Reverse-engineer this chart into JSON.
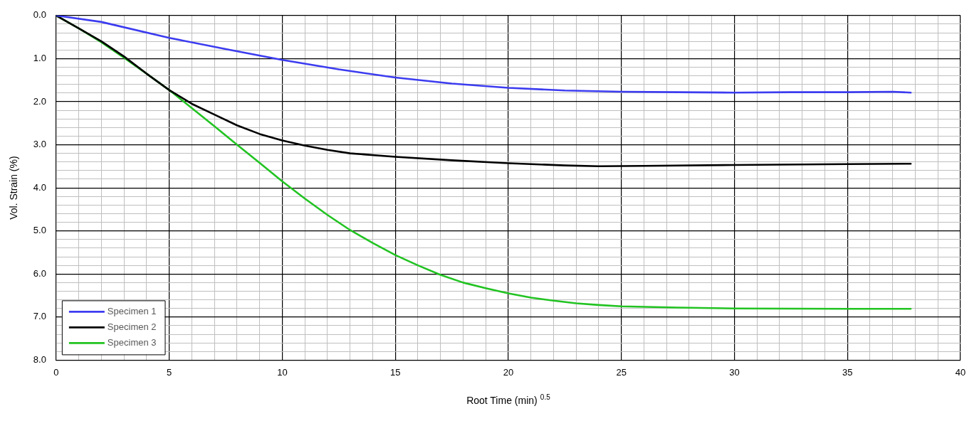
{
  "chart_data": {
    "type": "line",
    "xlabel": "Root Time (min) $^{0.5}$",
    "ylabel": "Vol. Strain (%)",
    "xlim": [
      0,
      40
    ],
    "ylim": [
      8,
      0
    ],
    "xticks": [
      0,
      {
        "value": 1,
        "label": null
      },
      {
        "value": 2,
        "label": null
      },
      {
        "value": 3,
        "label": null
      },
      {
        "value": 4,
        "label": null
      },
      5,
      {
        "value": 6,
        "label": null
      },
      {
        "value": 7,
        "label": null
      },
      {
        "value": 8,
        "label": null
      },
      {
        "value": 9,
        "label": null
      },
      10,
      {
        "value": 11,
        "label": null
      },
      {
        "value": 12,
        "label": null
      },
      {
        "value": 13,
        "label": null
      },
      {
        "value": 14,
        "label": null
      },
      15,
      {
        "value": 16,
        "label": null
      },
      {
        "value": 17,
        "label": null
      },
      {
        "value": 18,
        "label": null
      },
      {
        "value": 19,
        "label": null
      },
      20,
      {
        "value": 21,
        "label": null
      },
      {
        "value": 22,
        "label": null
      },
      {
        "value": 23,
        "label": null
      },
      {
        "value": 24,
        "label": null
      },
      25,
      {
        "value": 26,
        "label": null
      },
      {
        "value": 27,
        "label": null
      },
      {
        "value": 28,
        "label": null
      },
      {
        "value": 29,
        "label": null
      },
      30,
      {
        "value": 31,
        "label": null
      },
      {
        "value": 32,
        "label": null
      },
      {
        "value": 33,
        "label": null
      },
      {
        "value": 34,
        "label": null
      },
      35,
      {
        "value": 36,
        "label": null
      },
      {
        "value": 37,
        "label": null
      },
      {
        "value": 38,
        "label": null
      },
      {
        "value": 39,
        "label": null
      },
      40
    ],
    "yticks": [
      {
        "value": 0,
        "label": "0.0"
      },
      {
        "value": 0.2,
        "label": null
      },
      {
        "value": 0.4,
        "label": null
      },
      {
        "value": 0.6,
        "label": null
      },
      {
        "value": 0.8,
        "label": null
      },
      {
        "value": 1,
        "label": "1.0"
      },
      {
        "value": 1.2,
        "label": null
      },
      {
        "value": 1.4,
        "label": null
      },
      {
        "value": 1.6,
        "label": null
      },
      {
        "value": 1.8,
        "label": null
      },
      {
        "value": 2,
        "label": "2.0"
      },
      {
        "value": 2.2,
        "label": null
      },
      {
        "value": 2.4,
        "label": null
      },
      {
        "value": 2.6,
        "label": null
      },
      {
        "value": 2.8,
        "label": null
      },
      {
        "value": 3,
        "label": "3.0"
      },
      {
        "value": 3.2,
        "label": null
      },
      {
        "value": 3.4,
        "label": null
      },
      {
        "value": 3.6,
        "label": null
      },
      {
        "value": 3.8,
        "label": null
      },
      {
        "value": 4,
        "label": "4.0"
      },
      {
        "value": 4.2,
        "label": null
      },
      {
        "value": 4.4,
        "label": null
      },
      {
        "value": 4.6,
        "label": null
      },
      {
        "value": 4.8,
        "label": null
      },
      {
        "value": 5,
        "label": "5.0"
      },
      {
        "value": 5.2,
        "label": null
      },
      {
        "value": 5.4,
        "label": null
      },
      {
        "value": 5.6,
        "label": null
      },
      {
        "value": 5.8,
        "label": null
      },
      {
        "value": 6,
        "label": "6.0"
      },
      {
        "value": 6.2,
        "label": null
      },
      {
        "value": 6.4,
        "label": null
      },
      {
        "value": 6.6,
        "label": null
      },
      {
        "value": 6.8,
        "label": null
      },
      {
        "value": 7,
        "label": "7.0"
      },
      {
        "value": 7.2,
        "label": null
      },
      {
        "value": 7.4,
        "label": null
      },
      {
        "value": 7.6,
        "label": null
      },
      {
        "value": 7.8,
        "label": null
      },
      {
        "value": 8,
        "label": "8.0"
      }
    ],
    "grid": true,
    "legend": "bottom left",
    "marker": "none",
    "line_style": "solid",
    "series": [
      {
        "name": "Specimen 1",
        "color": "#3c3cf0",
        "x": [
          0,
          2,
          5,
          7.5,
          10,
          12.5,
          15,
          17.5,
          20,
          22.5,
          25,
          27.5,
          30,
          32.5,
          35,
          37,
          37.8
        ],
        "values": [
          0,
          0.15,
          0.52,
          0.78,
          1.03,
          1.25,
          1.44,
          1.58,
          1.68,
          1.74,
          1.77,
          1.78,
          1.79,
          1.78,
          1.78,
          1.77,
          1.79
        ]
      },
      {
        "name": "Specimen 2",
        "color": "#000000",
        "x": [
          0,
          1,
          2,
          3,
          4,
          5,
          6,
          7,
          8,
          9,
          10,
          11,
          12,
          13,
          15,
          17.5,
          20,
          22.5,
          24,
          26,
          30,
          35,
          37.8
        ],
        "values": [
          0,
          0.3,
          0.6,
          0.95,
          1.35,
          1.73,
          2.05,
          2.3,
          2.55,
          2.75,
          2.9,
          3.02,
          3.12,
          3.2,
          3.28,
          3.36,
          3.43,
          3.48,
          3.5,
          3.49,
          3.47,
          3.45,
          3.44
        ]
      },
      {
        "name": "Specimen 3",
        "color": "#22c322",
        "x": [
          0,
          1,
          2,
          3,
          4,
          5,
          6,
          7,
          8,
          9,
          10,
          11,
          12,
          13,
          14,
          15,
          16,
          17,
          18,
          19,
          20,
          21,
          22,
          23,
          24,
          25,
          27.5,
          30,
          35,
          37.8
        ],
        "values": [
          0,
          0.3,
          0.62,
          0.98,
          1.35,
          1.73,
          2.15,
          2.57,
          3.0,
          3.42,
          3.85,
          4.25,
          4.63,
          4.98,
          5.28,
          5.56,
          5.8,
          6.02,
          6.2,
          6.33,
          6.45,
          6.55,
          6.62,
          6.68,
          6.72,
          6.75,
          6.78,
          6.8,
          6.81,
          6.81
        ]
      }
    ]
  }
}
